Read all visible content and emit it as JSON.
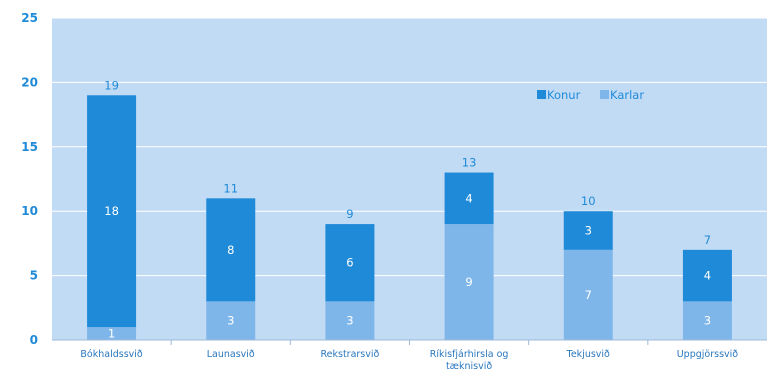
{
  "chart_data": {
    "type": "bar",
    "stacked": true,
    "categories": [
      "Bókhaldssvið",
      "Launasvið",
      "Rekstrarsvið",
      "Ríkisfjárhirsla og",
      "Tekjusvið",
      "Uppgjörssvið"
    ],
    "category_overflow": [
      "",
      "",
      "",
      "tæknisvið",
      "",
      ""
    ],
    "series": [
      {
        "name": "Karlar",
        "values": [
          1,
          3,
          3,
          9,
          7,
          3
        ],
        "color": "#7fb6ea"
      },
      {
        "name": "Konur",
        "values": [
          18,
          8,
          6,
          4,
          3,
          4
        ],
        "color": "#1f8ad8"
      }
    ],
    "totals": [
      19,
      11,
      9,
      13,
      10,
      7
    ],
    "legend_order": [
      "Konur",
      "Karlar"
    ],
    "legend_position": "top-right",
    "ylim": [
      0,
      25
    ],
    "yticks": [
      0,
      5,
      10,
      15,
      20,
      25
    ],
    "title": "",
    "xlabel": "",
    "ylabel": "",
    "colors": {
      "plot_background": "#c2dbf5",
      "axis_text": "#1f8ad8",
      "category_text": "#2a77bd",
      "gridline": "#ffffff"
    }
  }
}
